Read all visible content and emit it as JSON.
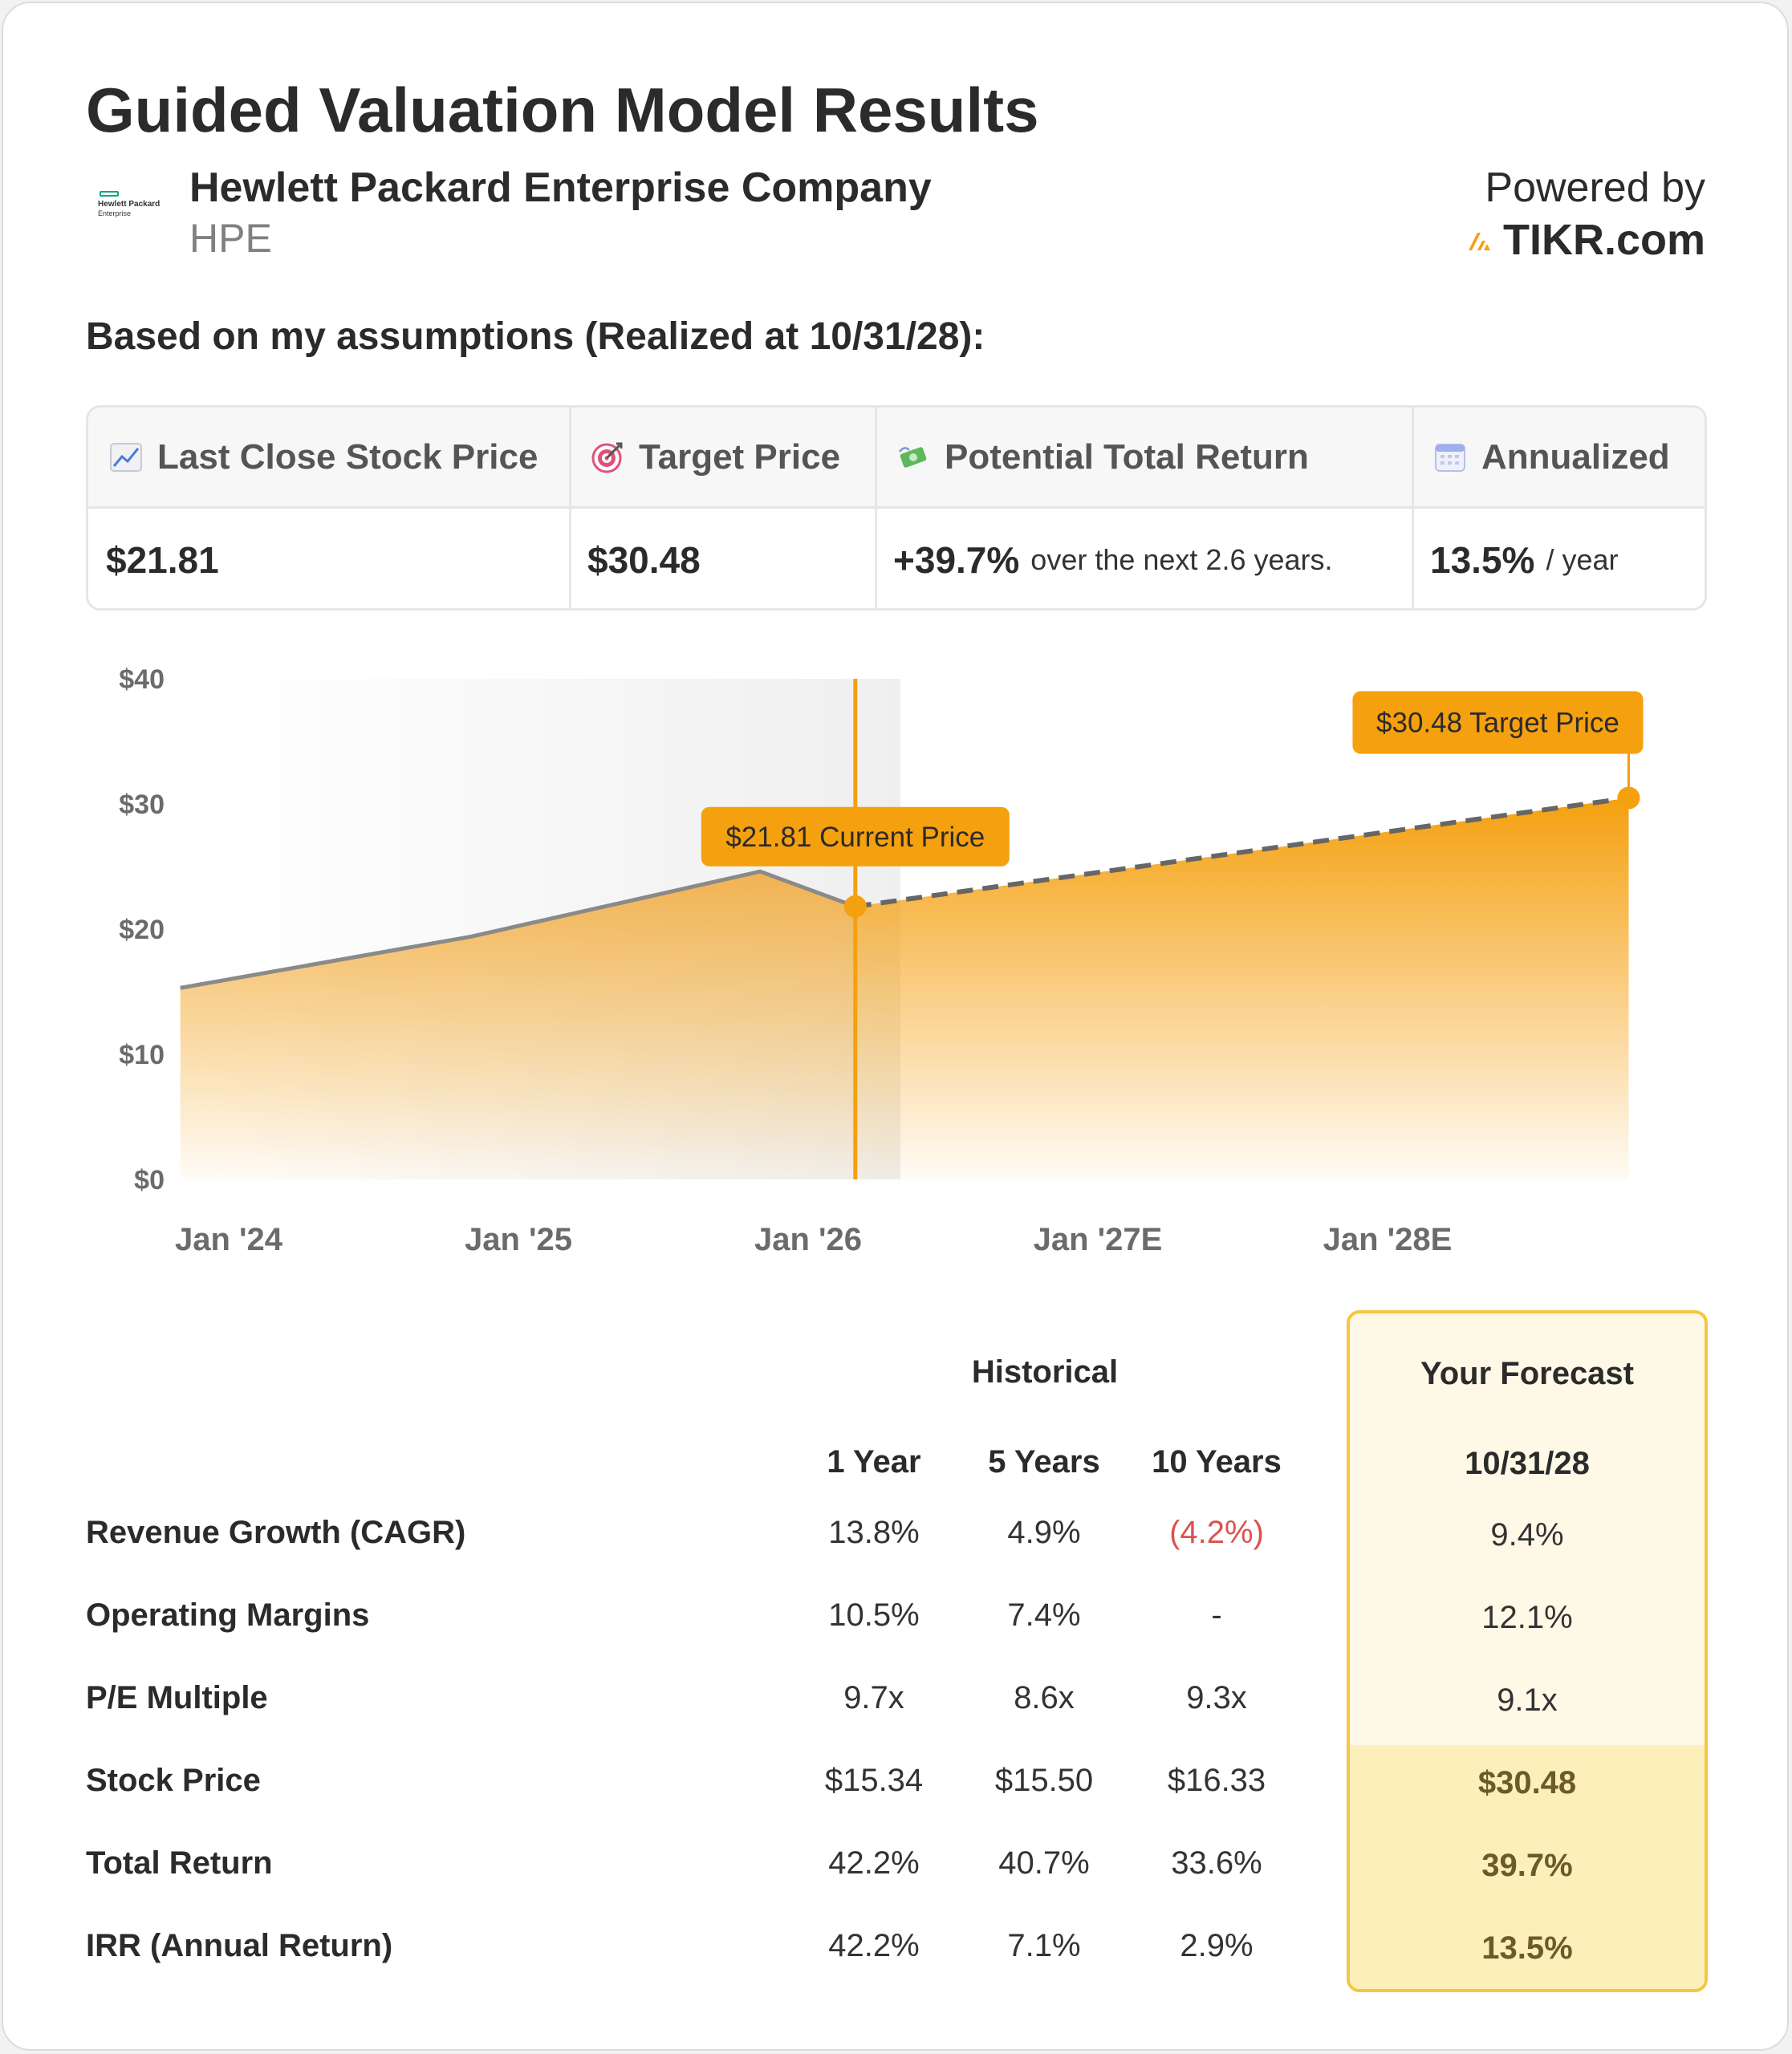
{
  "header": {
    "title": "Guided Valuation Model Results",
    "company_name": "Hewlett Packard Enterprise Company",
    "ticker": "HPE",
    "logo_line1": "Hewlett Packard",
    "logo_line2": "Enterprise",
    "powered_by": "Powered by",
    "brand": "TIKR.com"
  },
  "assumptions_label": "Based on my assumptions (Realized at 10/31/28):",
  "metrics": {
    "last_close": {
      "label": "Last Close Stock Price",
      "value": "$21.81",
      "icon": "chart-increasing-icon"
    },
    "target": {
      "label": "Target Price",
      "value": "$30.48",
      "icon": "target-icon"
    },
    "total_return": {
      "label": "Potential Total Return",
      "value": "+39.7%",
      "suffix": "over the next 2.6 years.",
      "icon": "money-wings-icon"
    },
    "annualized": {
      "label": "Annualized",
      "value": "13.5%",
      "suffix": "/ year",
      "icon": "calendar-icon"
    }
  },
  "chart_data": {
    "type": "area",
    "y_ticks": [
      "$0",
      "$10",
      "$20",
      "$30",
      "$40"
    ],
    "ylim": [
      0,
      40
    ],
    "x_ticks": [
      "Jan '24",
      "Jan '25",
      "Jan '26",
      "Jan '27E",
      "Jan '28E"
    ],
    "historical": {
      "x": [
        "2023-11-01",
        "2024-11-01",
        "2025-11-01",
        "2026-03-01"
      ],
      "y": [
        15.3,
        19.4,
        24.6,
        21.81
      ]
    },
    "forecast": {
      "x": [
        "2026-03-01",
        "2028-10-31"
      ],
      "y": [
        21.81,
        30.48
      ]
    },
    "annotations": {
      "current": "$21.81 Current Price",
      "target": "$30.48 Target Price"
    },
    "colors": {
      "accent": "#f5a00f",
      "line_gray": "#8a8a8a",
      "dash": "#666666"
    }
  },
  "table": {
    "historical_header": "Historical",
    "forecast_header": "Your Forecast",
    "columns": [
      "1 Year",
      "5 Years",
      "10 Years"
    ],
    "forecast_column": "10/31/28",
    "rows": [
      {
        "label": "Revenue Growth (CAGR)",
        "values": [
          "13.8%",
          "4.9%",
          "(4.2%)"
        ],
        "forecast": "9.4%"
      },
      {
        "label": "Operating Margins",
        "values": [
          "10.5%",
          "7.4%",
          "-"
        ],
        "forecast": "12.1%"
      },
      {
        "label": "P/E Multiple",
        "values": [
          "9.7x",
          "8.6x",
          "9.3x"
        ],
        "forecast": "9.1x"
      },
      {
        "label": "Stock Price",
        "values": [
          "$15.34",
          "$15.50",
          "$16.33"
        ],
        "forecast": "$30.48"
      },
      {
        "label": "Total Return",
        "values": [
          "42.2%",
          "40.7%",
          "33.6%"
        ],
        "forecast": "39.7%"
      },
      {
        "label": "IRR (Annual Return)",
        "values": [
          "42.2%",
          "7.1%",
          "2.9%"
        ],
        "forecast": "13.5%"
      }
    ],
    "negative_color": "#d9534f"
  }
}
